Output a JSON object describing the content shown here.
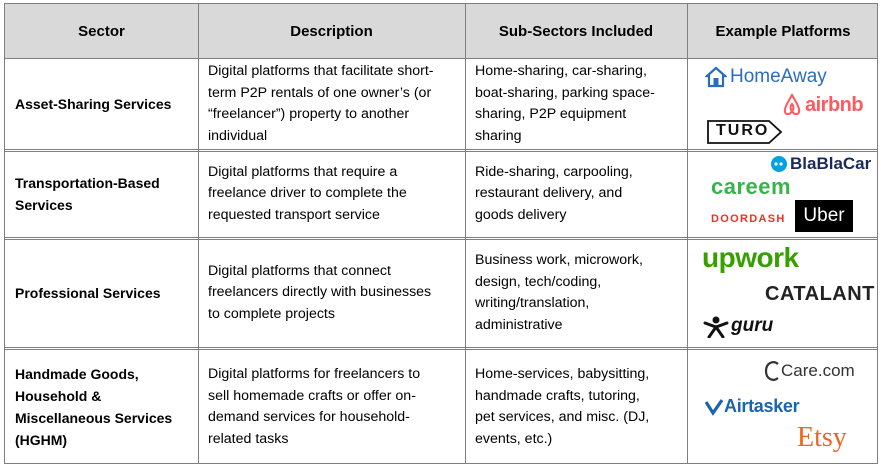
{
  "headers": [
    "Sector",
    "Description",
    "Sub-Sectors Included",
    "Example Platforms"
  ],
  "rows": [
    {
      "sector": [
        "Asset-Sharing Services"
      ],
      "description": [
        "Digital platforms that facilitate short-",
        "term P2P rentals of one owner’s (or",
        "“freelancer”) property to another",
        "individual"
      ],
      "subsectors": [
        "Home-sharing, car-sharing,",
        "boat-sharing, parking space-",
        "sharing, P2P equipment",
        "sharing"
      ],
      "platforms": [
        "HomeAway",
        "airbnb",
        "TURO"
      ]
    },
    {
      "sector": [
        "Transportation-Based",
        "Services"
      ],
      "description": [
        "Digital platforms that require a",
        "freelance driver to complete the",
        "requested transport service"
      ],
      "subsectors": [
        "Ride-sharing, carpooling,",
        "restaurant delivery, and",
        "goods delivery"
      ],
      "platforms": [
        "BlaBlaCar",
        "careem",
        "DOORDASH",
        "Uber"
      ]
    },
    {
      "sector": [
        "Professional Services"
      ],
      "description": [
        "Digital platforms that connect",
        "freelancers directly with businesses",
        "to complete projects"
      ],
      "subsectors": [
        "Business work, microwork,",
        "design, tech/coding,",
        "writing/translation,",
        "administrative"
      ],
      "platforms": [
        "upwork",
        "CATALANT",
        "guru"
      ]
    },
    {
      "sector": [
        "Handmade Goods,",
        "Household &",
        "Miscellaneous Services",
        "(HGHM)"
      ],
      "description": [
        "Digital platforms for freelancers to",
        "sell homemade crafts or offer on-",
        "demand services for household-",
        "related tasks"
      ],
      "subsectors": [
        "Home-services, babysitting,",
        "handmade crafts, tutoring,",
        "pet services, and misc. (DJ,",
        "events, etc.)"
      ],
      "platforms": [
        "Care.com",
        "Airtasker",
        "Etsy"
      ]
    }
  ],
  "brand_colors": {
    "homeaway": "#2a6ebb",
    "airbnb": "#ff5a5f",
    "blablacar": "#00a3e0",
    "careem": "#37b44a",
    "doordash": "#ef3125",
    "uber": "#000000",
    "upwork": "#37a000",
    "catalant": "#222222",
    "guru": "#111111",
    "carecom": "#333333",
    "airtasker": "#1b64b0",
    "etsy": "#f1641e"
  }
}
